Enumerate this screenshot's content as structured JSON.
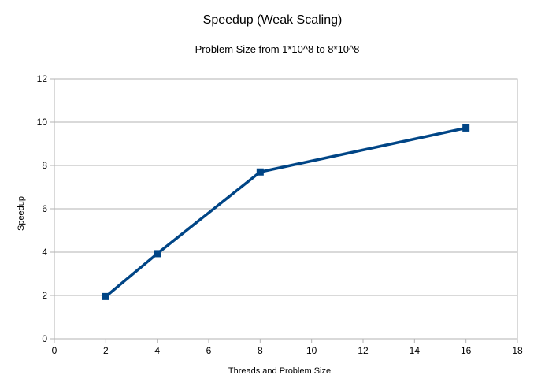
{
  "chart_data": {
    "type": "line",
    "title": "Speedup (Weak Scaling)",
    "subtitle": "Problem Size from 1*10^8 to 8*10^8",
    "xlabel": "Threads and Problem Size",
    "ylabel": "Speedup",
    "xlim": [
      0,
      18
    ],
    "ylim": [
      0,
      12
    ],
    "xticks": [
      0,
      2,
      4,
      6,
      8,
      10,
      12,
      14,
      16,
      18
    ],
    "yticks": [
      0,
      2,
      4,
      6,
      8,
      10,
      12
    ],
    "grid": "horizontal",
    "legend": "none",
    "series": [
      {
        "x": [
          2,
          4,
          8,
          16
        ],
        "y": [
          1.95,
          3.93,
          7.7,
          9.73
        ],
        "color": "#004586",
        "marker": "square"
      }
    ]
  }
}
